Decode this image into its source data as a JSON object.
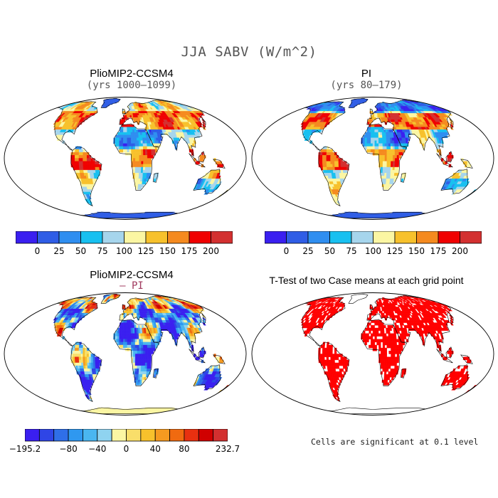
{
  "figure": {
    "title": "JJA SABV (W/m^2)"
  },
  "panels": [
    {
      "id": "ccsm4",
      "title": "PlioMIP2-CCSM4",
      "subtitle": "(yrs 1000–1099)",
      "style": "abs"
    },
    {
      "id": "pi",
      "title": "PI",
      "subtitle": "(yrs 80–179)",
      "style": "abs"
    },
    {
      "id": "diff",
      "title": "PlioMIP2-CCSM4",
      "subtitle": "– PI",
      "style": "diff"
    },
    {
      "id": "ttest",
      "title": "T-Test of two Case means at each grid point",
      "subtitle": "",
      "style": "sig"
    }
  ],
  "colorbars": {
    "absolute": {
      "colors": [
        "#3a1ff0",
        "#2f5de6",
        "#2f8ef0",
        "#18c0f0",
        "#a6d5ec",
        "#fbf6a3",
        "#f7c12c",
        "#f58a1f",
        "#f00000",
        "#d33030"
      ],
      "labels": [
        "0",
        "25",
        "50",
        "75",
        "100",
        "125",
        "150",
        "175",
        "200"
      ]
    },
    "difference": {
      "colors": [
        "#3a1ff0",
        "#2f45e6",
        "#2f6fe8",
        "#2f98f0",
        "#4ab6f0",
        "#8fd3f0",
        "#fbf6a3",
        "#f9de6a",
        "#f7c12c",
        "#f59a20",
        "#f06a10",
        "#e83010",
        "#d00000",
        "#d33030"
      ],
      "labels": [
        "−195.2",
        "−80",
        "−40",
        "0",
        "40",
        "80",
        "232.7"
      ]
    }
  },
  "footnote": "Cells are significant at 0.1 level",
  "map_colors": {
    "ocean": "#ffffff",
    "outline": "#000000",
    "significant": "#ff0000"
  }
}
